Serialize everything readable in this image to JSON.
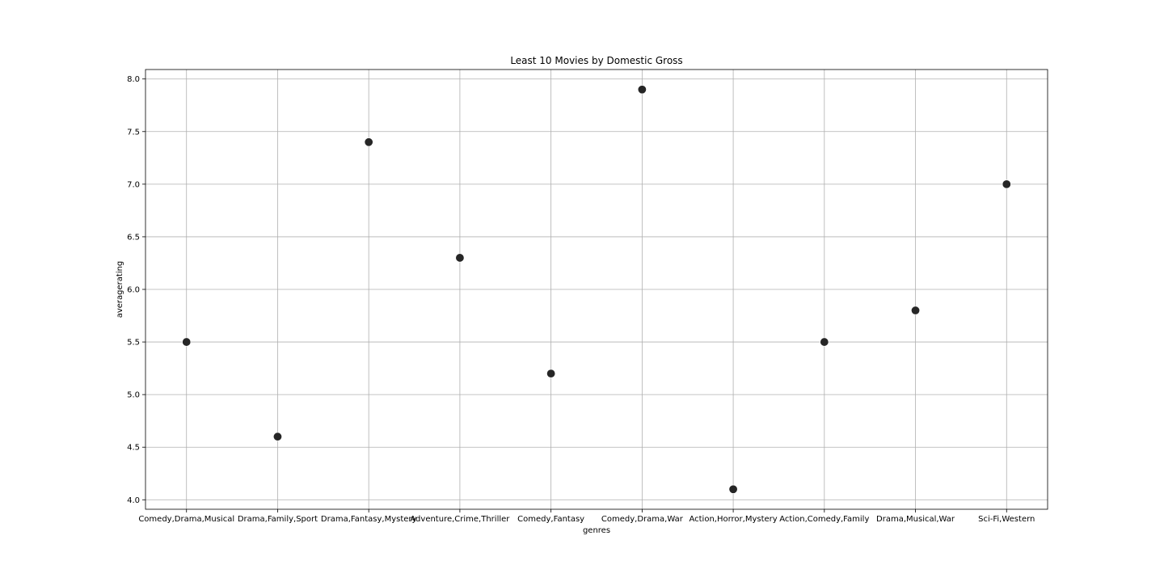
{
  "chart_data": {
    "type": "scatter",
    "title": "Least 10 Movies by Domestic Gross",
    "xlabel": "genres",
    "ylabel": "averagerating",
    "categories": [
      "Comedy,Drama,Musical",
      "Drama,Family,Sport",
      "Drama,Fantasy,Mystery",
      "Adventure,Crime,Thriller",
      "Comedy,Fantasy",
      "Comedy,Drama,War",
      "Action,Horror,Mystery",
      "Action,Comedy,Family",
      "Drama,Musical,War",
      "Sci-Fi,Western"
    ],
    "values": [
      5.5,
      4.6,
      7.4,
      6.3,
      5.2,
      7.9,
      4.1,
      5.5,
      5.8,
      7.0
    ],
    "ylim": [
      3.91,
      8.09
    ],
    "yticks": [
      "4.0",
      "4.5",
      "5.0",
      "5.5",
      "6.0",
      "6.5",
      "7.0",
      "7.5",
      "8.0"
    ],
    "grid": true,
    "legend": "none",
    "point_color": "#262626"
  }
}
